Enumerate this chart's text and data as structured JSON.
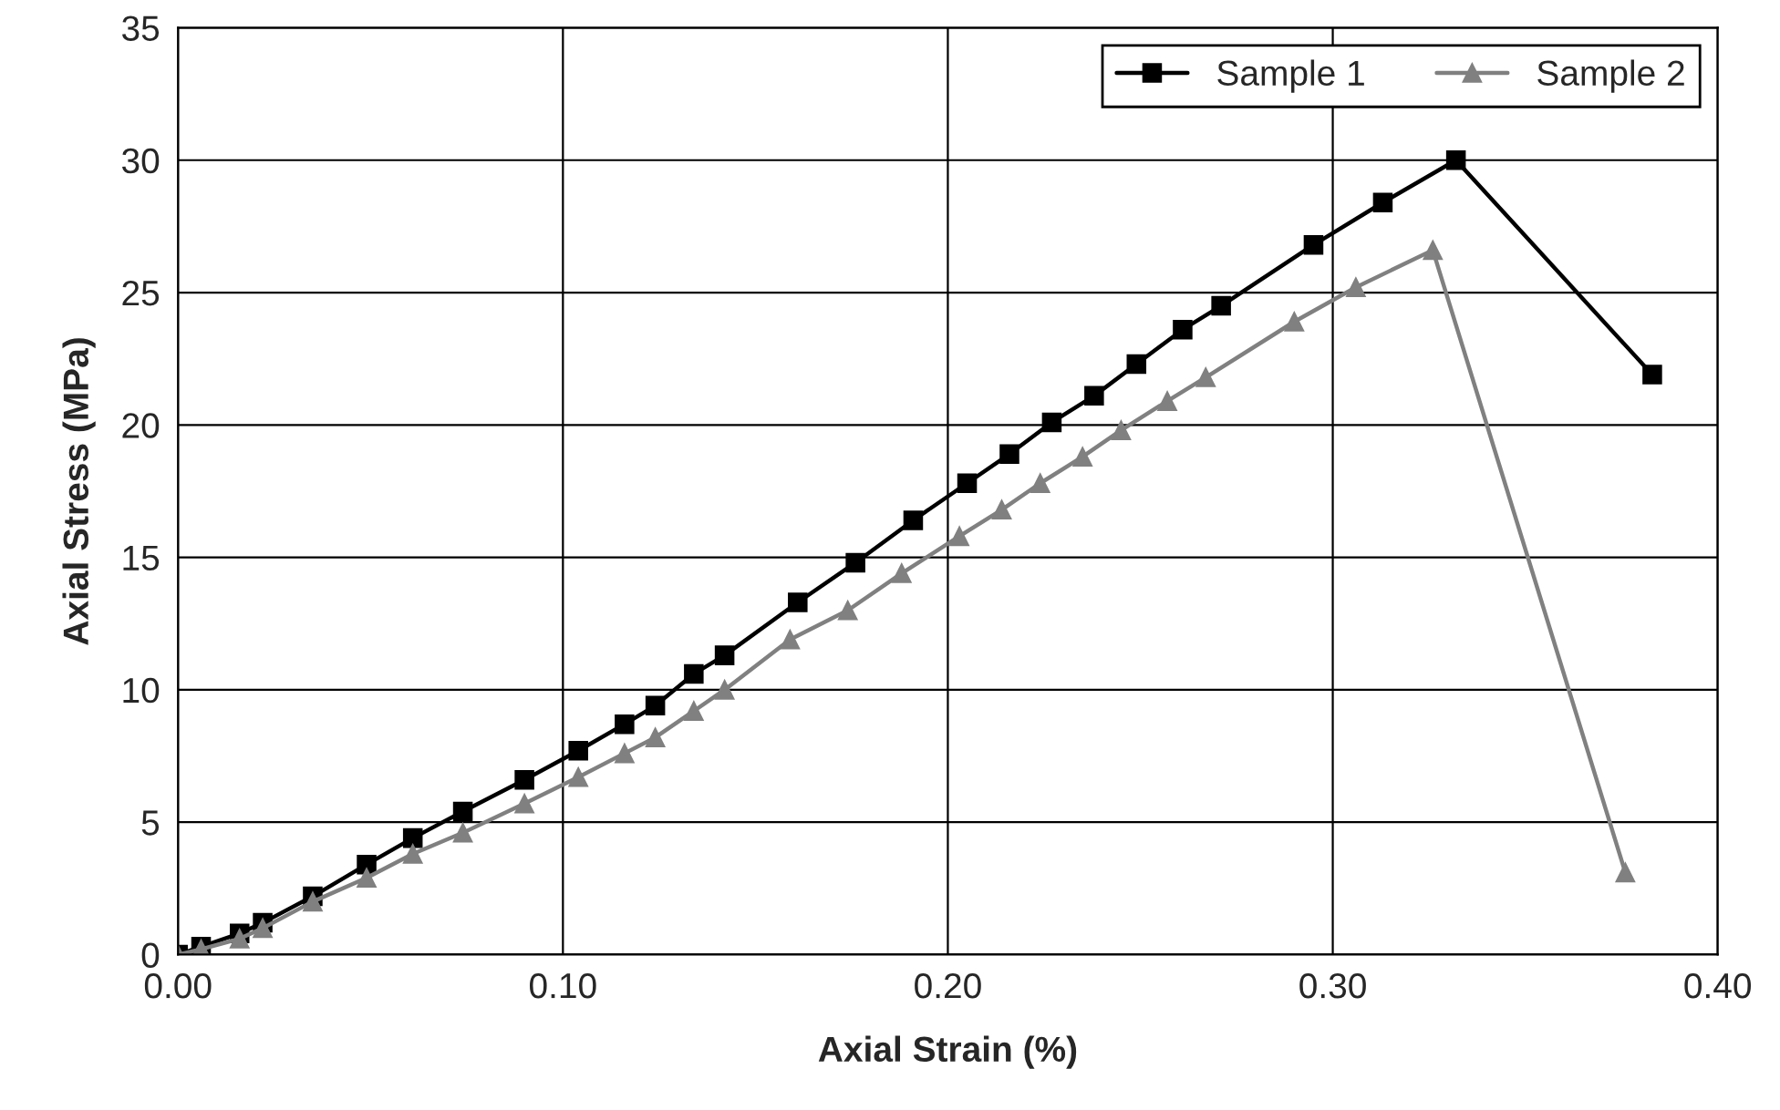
{
  "chart_data": {
    "type": "line",
    "xlabel": "Axial Strain (%)",
    "ylabel": "Axial Stress (MPa)",
    "xlim": [
      0,
      0.4
    ],
    "xticks": [
      {
        "value": 0,
        "label": "0.00"
      },
      {
        "value": 0.1,
        "label": "0.10"
      },
      {
        "value": 0.2,
        "label": "0.20"
      },
      {
        "value": 0.3,
        "label": "0.30"
      },
      {
        "value": 0.4,
        "label": "0.40"
      }
    ],
    "ylim": [
      0,
      35
    ],
    "yticks": [
      0,
      5,
      10,
      15,
      20,
      25,
      30,
      35
    ],
    "grid": true,
    "legend": "top right",
    "series": [
      {
        "name": "Sample 1",
        "color": "#000000",
        "marker": "square",
        "x": [
          0,
          0.006,
          0.016,
          0.022,
          0.035,
          0.049,
          0.061,
          0.074,
          0.09,
          0.104,
          0.116,
          0.124,
          0.134,
          0.142,
          0.161,
          0.176,
          0.191,
          0.205,
          0.216,
          0.227,
          0.238,
          0.249,
          0.261,
          0.271,
          0.295,
          0.313,
          0.332,
          0.383
        ],
        "values": [
          0,
          0.3,
          0.8,
          1.2,
          2.2,
          3.4,
          4.4,
          5.4,
          6.6,
          7.7,
          8.7,
          9.4,
          10.6,
          11.3,
          13.3,
          14.8,
          16.4,
          17.8,
          18.9,
          20.1,
          21.1,
          22.3,
          23.6,
          24.5,
          26.8,
          28.4,
          30.0,
          21.9
        ]
      },
      {
        "name": "Sample 2",
        "color": "#808080",
        "marker": "triangle",
        "x": [
          0,
          0.006,
          0.016,
          0.022,
          0.035,
          0.049,
          0.061,
          0.074,
          0.09,
          0.104,
          0.116,
          0.124,
          0.134,
          0.142,
          0.159,
          0.174,
          0.188,
          0.203,
          0.214,
          0.224,
          0.235,
          0.245,
          0.257,
          0.267,
          0.29,
          0.306,
          0.326,
          0.376
        ],
        "values": [
          0,
          0.2,
          0.6,
          1.0,
          2.0,
          2.9,
          3.8,
          4.6,
          5.7,
          6.7,
          7.6,
          8.2,
          9.2,
          10.0,
          11.9,
          13.0,
          14.4,
          15.8,
          16.8,
          17.8,
          18.8,
          19.8,
          20.9,
          21.8,
          23.9,
          25.2,
          26.6,
          3.1
        ]
      }
    ]
  }
}
